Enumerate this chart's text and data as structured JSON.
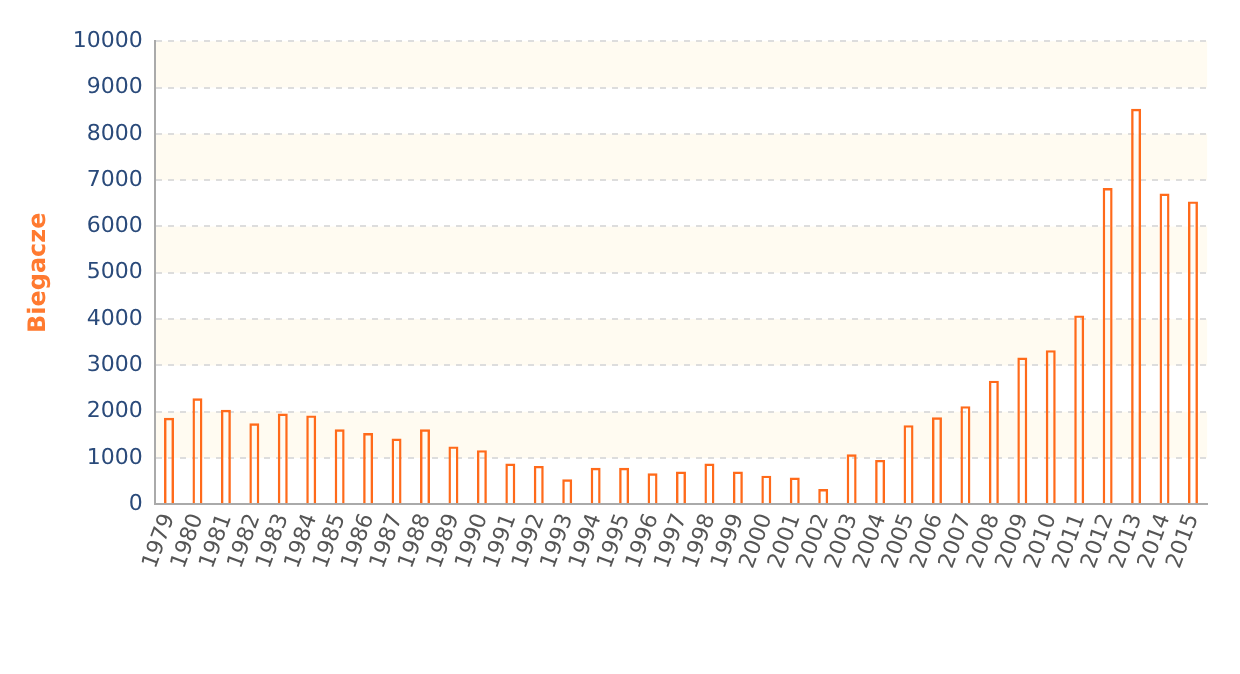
{
  "chart_data": {
    "type": "bar",
    "ylabel": "Biegacze",
    "categories": [
      "1979",
      "1980",
      "1981",
      "1982",
      "1983",
      "1984",
      "1985",
      "1986",
      "1987",
      "1988",
      "1989",
      "1990",
      "1991",
      "1992",
      "1993",
      "1994",
      "1995",
      "1996",
      "1997",
      "1998",
      "1999",
      "2000",
      "2001",
      "2002",
      "2003",
      "2004",
      "2005",
      "2006",
      "2007",
      "2008",
      "2009",
      "2010",
      "2011",
      "2012",
      "2013",
      "2014",
      "2015"
    ],
    "values": [
      1870,
      2290,
      2040,
      1750,
      1960,
      1920,
      1620,
      1540,
      1420,
      1620,
      1250,
      1170,
      880,
      830,
      540,
      790,
      790,
      670,
      710,
      880,
      710,
      620,
      580,
      330,
      1080,
      960,
      1710,
      1880,
      2120,
      2670,
      3170,
      3330,
      4080,
      6830,
      8540,
      6710,
      6540
    ],
    "color": "#ff6a1a",
    "ylim": [
      0,
      10000
    ],
    "yticks": [
      0,
      1000,
      2000,
      3000,
      4000,
      5000,
      6000,
      7000,
      8000,
      9000,
      10000
    ],
    "grid": "y",
    "legend": false
  }
}
